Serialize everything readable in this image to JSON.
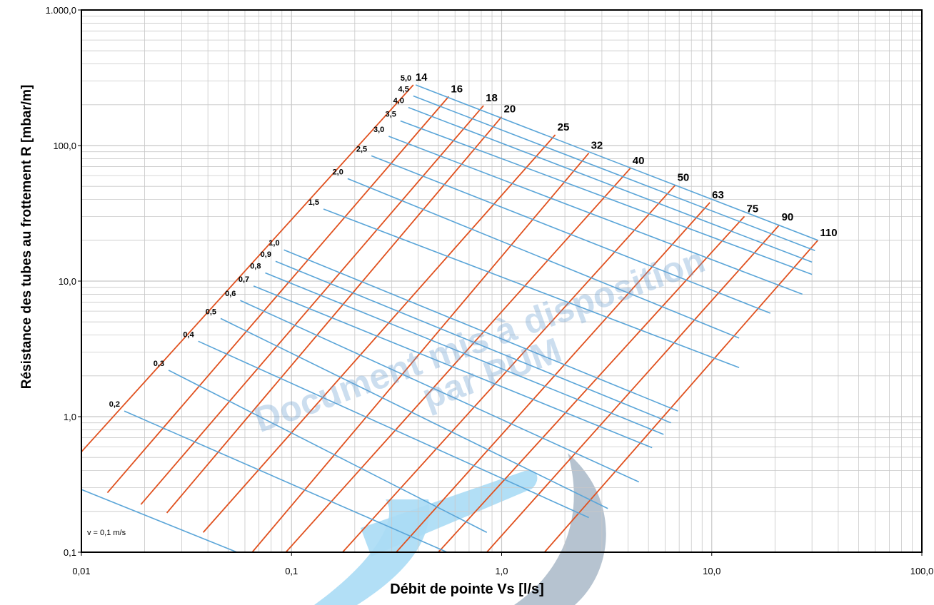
{
  "chart_data": {
    "type": "line",
    "title": "",
    "xlabel": "Débit de pointe Vs [l/s]",
    "ylabel": "Résistance des tubes au frottement R [mbar/m]",
    "x_scale": "log",
    "y_scale": "log",
    "xlim": [
      0.01,
      100
    ],
    "ylim": [
      0.1,
      1000
    ],
    "grid": true,
    "x_ticks": [
      0.01,
      0.1,
      1,
      10,
      100
    ],
    "x_tick_labels": [
      "0,01",
      "0,1",
      "1,0",
      "10,0",
      "100,0"
    ],
    "y_ticks": [
      0.1,
      1,
      10,
      100,
      1000
    ],
    "y_tick_labels": [
      "0,1",
      "1,0",
      "10,0",
      "100,0",
      "1.000,0"
    ],
    "series_pipes": [
      {
        "label": "14",
        "points": [
          [
            0.01,
            0.55
          ],
          [
            0.38,
            280
          ]
        ]
      },
      {
        "label": "16",
        "points": [
          [
            0.0133,
            0.275
          ],
          [
            0.56,
            230
          ]
        ]
      },
      {
        "label": "18",
        "points": [
          [
            0.0192,
            0.225
          ],
          [
            0.82,
            197
          ]
        ]
      },
      {
        "label": "20",
        "points": [
          [
            0.0255,
            0.195
          ],
          [
            1.0,
            163
          ]
        ]
      },
      {
        "label": "25",
        "points": [
          [
            0.038,
            0.14
          ],
          [
            1.8,
            120
          ]
        ]
      },
      {
        "label": "32",
        "points": [
          [
            0.065,
            0.1
          ],
          [
            2.6,
            88
          ]
        ]
      },
      {
        "label": "40",
        "points": [
          [
            0.094,
            0.1
          ],
          [
            4.1,
            68
          ]
        ]
      },
      {
        "label": "50",
        "points": [
          [
            0.175,
            0.1
          ],
          [
            6.7,
            51
          ]
        ]
      },
      {
        "label": "63",
        "points": [
          [
            0.315,
            0.1
          ],
          [
            9.8,
            38
          ]
        ]
      },
      {
        "label": "75",
        "points": [
          [
            0.5,
            0.1
          ],
          [
            14.3,
            30
          ]
        ]
      },
      {
        "label": "90",
        "points": [
          [
            0.85,
            0.1
          ],
          [
            21,
            26
          ]
        ]
      },
      {
        "label": "110",
        "points": [
          [
            1.6,
            0.1
          ],
          [
            32,
            20
          ]
        ]
      }
    ],
    "series_velocity": [
      {
        "label": "v = 0,1 m/s",
        "points": [
          [
            0.01,
            0.29
          ],
          [
            0.055,
            0.1
          ]
        ]
      },
      {
        "label": "0,2",
        "points": [
          [
            0.016,
            1.1
          ],
          [
            0.55,
            0.1
          ]
        ]
      },
      {
        "label": "0,3",
        "points": [
          [
            0.026,
            2.2
          ],
          [
            0.85,
            0.14
          ]
        ]
      },
      {
        "label": "0,4",
        "points": [
          [
            0.036,
            3.6
          ],
          [
            2.6,
            0.18
          ]
        ]
      },
      {
        "label": "0,5",
        "points": [
          [
            0.046,
            5.3
          ],
          [
            3.2,
            0.21
          ]
        ]
      },
      {
        "label": "0,6",
        "points": [
          [
            0.057,
            7.2
          ],
          [
            4.5,
            0.33
          ]
        ]
      },
      {
        "label": "0,7",
        "points": [
          [
            0.066,
            9.2
          ],
          [
            5.2,
            0.59
          ]
        ]
      },
      {
        "label": "0,8",
        "points": [
          [
            0.075,
            11.5
          ],
          [
            5.9,
            0.74
          ]
        ]
      },
      {
        "label": "0,9",
        "points": [
          [
            0.084,
            14.0
          ],
          [
            6.4,
            0.9
          ]
        ]
      },
      {
        "label": "1,0",
        "points": [
          [
            0.092,
            17.0
          ],
          [
            6.9,
            1.1
          ]
        ]
      },
      {
        "label": "1,5",
        "points": [
          [
            0.142,
            34
          ],
          [
            13.5,
            2.3
          ]
        ]
      },
      {
        "label": "2,0",
        "points": [
          [
            0.185,
            57
          ],
          [
            13.5,
            3.8
          ]
        ]
      },
      {
        "label": "2,5",
        "points": [
          [
            0.24,
            84
          ],
          [
            19,
            5.8
          ]
        ]
      },
      {
        "label": "3,0",
        "points": [
          [
            0.29,
            117
          ],
          [
            27,
            8.0
          ]
        ]
      },
      {
        "label": "3,5",
        "points": [
          [
            0.33,
            152
          ],
          [
            30,
            11.2
          ]
        ]
      },
      {
        "label": "4,0",
        "points": [
          [
            0.36,
            191
          ],
          [
            30,
            13.8
          ]
        ]
      },
      {
        "label": "4,5",
        "points": [
          [
            0.38,
            232
          ],
          [
            31,
            16.8
          ]
        ]
      },
      {
        "label": "5,0",
        "points": [
          [
            0.39,
            280
          ],
          [
            32,
            20
          ]
        ]
      }
    ],
    "colors": {
      "pipe": "#e0501e",
      "velocity": "#5aa5d8",
      "grid": "#c8c8c8"
    }
  }
}
